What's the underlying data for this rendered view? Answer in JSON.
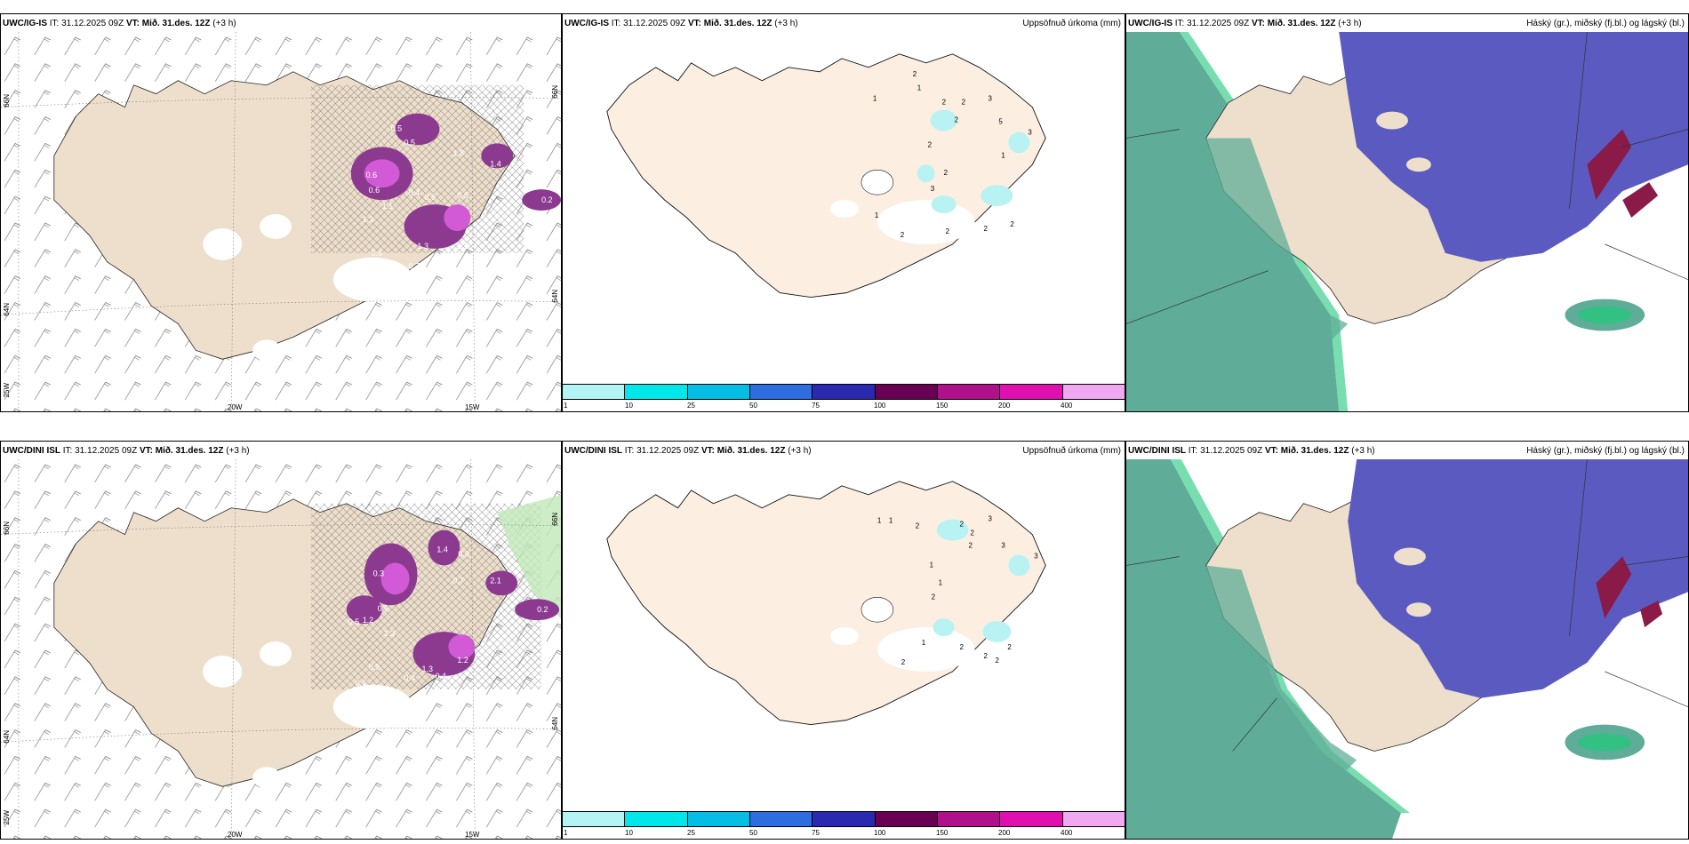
{
  "rows": [
    {
      "model": "UWC/IG-IS",
      "it_label": "IT:",
      "it_value": "31.12.2025 09Z",
      "vt_label": "VT:",
      "vt_value": "Mið. 31.des. 12Z",
      "lead": "(+3 h)"
    },
    {
      "model": "UWC/DINI ISL",
      "it_label": "IT:",
      "it_value": "31.12.2025 09Z",
      "vt_label": "VT:",
      "vt_value": "Mið. 31.des. 12Z",
      "lead": "(+3 h)"
    }
  ],
  "titles": {
    "precip": "Uppsöfnuð úrkoma (mm)",
    "clouds": "Háský (gr.), miðský (fj.bl.) og lágský (bl.)"
  },
  "axes": {
    "lat66": "66N",
    "lat64": "64N",
    "lon25": "25W",
    "lon20": "20W",
    "lon15": "15W"
  },
  "colorbar": {
    "ticks": [
      "1",
      "10",
      "25",
      "50",
      "75",
      "100",
      "150",
      "200",
      "400"
    ],
    "colors": [
      "#b5f4f4",
      "#00e7ea",
      "#06bde6",
      "#2d6de0",
      "#2a2ab0",
      "#6a0054",
      "#b0108a",
      "#e010b0",
      "#f0a8f0"
    ]
  },
  "colors": {
    "land": "#eedfcc",
    "land_light": "#fcefe2",
    "precip_light": "#b8f2f2",
    "purple": "#8c3a90",
    "magenta": "#d35ad7",
    "low_cloud": "#5fad98",
    "low_cloud_edge": "#1fc87a",
    "mid_cloud": "#5a5ac0",
    "high_cloud": "#8a1a48"
  },
  "precip_labels": {
    "row0": [
      "0.5",
      "0.6",
      "0.5",
      "1.8",
      "1.4",
      "0.6",
      "1.1",
      "1.3",
      "0.4",
      "0.5",
      "0.5",
      "1.3",
      "0.7",
      "1.1",
      "0.6",
      "0.4",
      "0.2"
    ],
    "row1": [
      "1.4",
      "0.3",
      "2.1",
      "0.3",
      "0.7",
      "0.6",
      "1.2",
      "0.5",
      "1.3",
      "1.3",
      "1.2",
      "0.4",
      "0.9",
      "0.4",
      "0.4",
      "0.2"
    ]
  },
  "accum_labels": {
    "row0": [
      "1",
      "2",
      "1",
      "2",
      "2",
      "3",
      "2",
      "5",
      "3",
      "2",
      "1",
      "2",
      "3",
      "1",
      "2",
      "2",
      "2",
      "2"
    ],
    "row1": [
      "1",
      "1",
      "2",
      "2",
      "2",
      "3",
      "2",
      "3",
      "3",
      "1",
      "1",
      "2",
      "1",
      "2",
      "2",
      "2",
      "2",
      "2"
    ]
  }
}
